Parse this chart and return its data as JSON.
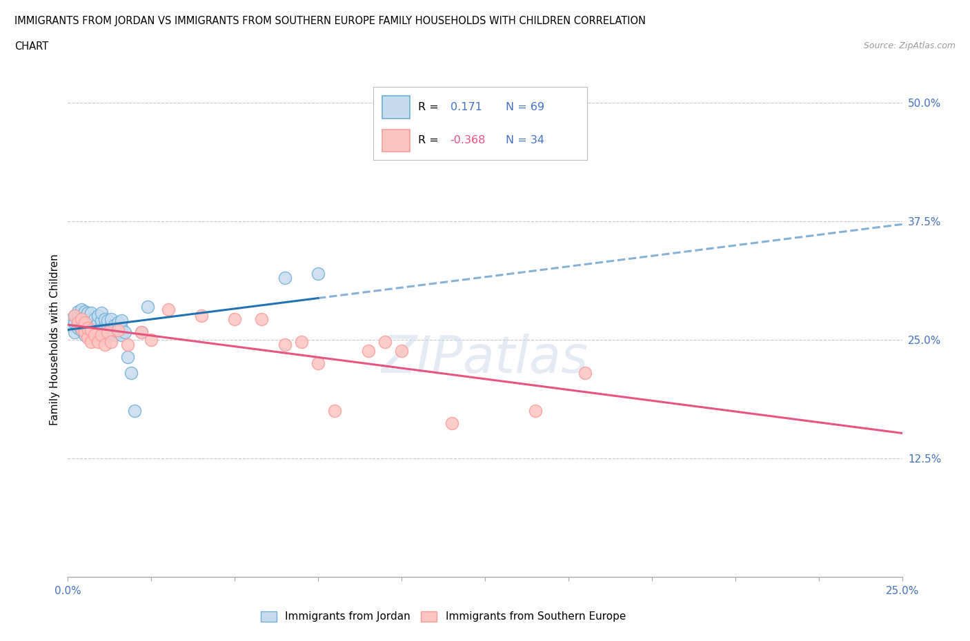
{
  "title_line1": "IMMIGRANTS FROM JORDAN VS IMMIGRANTS FROM SOUTHERN EUROPE FAMILY HOUSEHOLDS WITH CHILDREN CORRELATION",
  "title_line2": "CHART",
  "source_text": "Source: ZipAtlas.com",
  "ylabel": "Family Households with Children",
  "xlim": [
    0.0,
    0.25
  ],
  "ylim": [
    0.0,
    0.5
  ],
  "xticks": [
    0.0,
    0.025,
    0.05,
    0.075,
    0.1,
    0.125,
    0.15,
    0.175,
    0.2,
    0.225,
    0.25
  ],
  "yticks": [
    0.0,
    0.125,
    0.25,
    0.375,
    0.5
  ],
  "xtick_labels_show": [
    "0.0%",
    "25.0%"
  ],
  "ytick_labels": [
    "",
    "12.5%",
    "25.0%",
    "37.5%",
    "50.0%"
  ],
  "r_jordan": 0.171,
  "n_jordan": 69,
  "r_south_europe": -0.368,
  "n_south_europe": 34,
  "jordan_fill": "#c6dbef",
  "jordan_edge": "#6baed6",
  "se_fill": "#fcc5c0",
  "se_edge": "#fb9a99",
  "trend_jordan_color": "#2171b5",
  "trend_se_color": "#e75480",
  "watermark": "ZIPatlas",
  "background_color": "#ffffff",
  "grid_color": "#c8c8c8",
  "legend_text_color": "#4472c4",
  "axis_text_color": "#4472c4",
  "jordan_x": [
    0.001,
    0.001,
    0.002,
    0.002,
    0.002,
    0.003,
    0.003,
    0.003,
    0.003,
    0.003,
    0.004,
    0.004,
    0.004,
    0.004,
    0.004,
    0.005,
    0.005,
    0.005,
    0.005,
    0.005,
    0.005,
    0.006,
    0.006,
    0.006,
    0.006,
    0.006,
    0.006,
    0.007,
    0.007,
    0.007,
    0.007,
    0.007,
    0.008,
    0.008,
    0.008,
    0.008,
    0.009,
    0.009,
    0.009,
    0.009,
    0.01,
    0.01,
    0.01,
    0.01,
    0.01,
    0.011,
    0.011,
    0.011,
    0.012,
    0.012,
    0.012,
    0.013,
    0.013,
    0.013,
    0.014,
    0.014,
    0.015,
    0.015,
    0.016,
    0.016,
    0.016,
    0.017,
    0.018,
    0.019,
    0.02,
    0.022,
    0.024,
    0.065,
    0.075
  ],
  "jordan_y": [
    0.265,
    0.272,
    0.258,
    0.268,
    0.275,
    0.262,
    0.268,
    0.272,
    0.276,
    0.28,
    0.26,
    0.265,
    0.27,
    0.275,
    0.282,
    0.255,
    0.26,
    0.265,
    0.27,
    0.275,
    0.28,
    0.255,
    0.26,
    0.265,
    0.268,
    0.272,
    0.278,
    0.258,
    0.263,
    0.268,
    0.272,
    0.278,
    0.255,
    0.26,
    0.265,
    0.272,
    0.258,
    0.263,
    0.268,
    0.275,
    0.255,
    0.26,
    0.265,
    0.27,
    0.278,
    0.258,
    0.265,
    0.272,
    0.255,
    0.262,
    0.27,
    0.258,
    0.265,
    0.272,
    0.255,
    0.265,
    0.258,
    0.268,
    0.255,
    0.262,
    0.27,
    0.258,
    0.232,
    0.215,
    0.175,
    0.258,
    0.285,
    0.315,
    0.32
  ],
  "se_x": [
    0.002,
    0.003,
    0.004,
    0.004,
    0.005,
    0.005,
    0.006,
    0.006,
    0.007,
    0.007,
    0.008,
    0.009,
    0.01,
    0.011,
    0.012,
    0.013,
    0.015,
    0.018,
    0.022,
    0.025,
    0.03,
    0.04,
    0.05,
    0.058,
    0.065,
    0.07,
    0.075,
    0.08,
    0.09,
    0.095,
    0.1,
    0.115,
    0.14,
    0.155
  ],
  "se_y": [
    0.275,
    0.268,
    0.262,
    0.272,
    0.258,
    0.268,
    0.252,
    0.262,
    0.248,
    0.26,
    0.255,
    0.248,
    0.255,
    0.245,
    0.258,
    0.248,
    0.26,
    0.245,
    0.258,
    0.25,
    0.282,
    0.275,
    0.272,
    0.272,
    0.245,
    0.248,
    0.225,
    0.175,
    0.238,
    0.248,
    0.238,
    0.162,
    0.175,
    0.215
  ]
}
